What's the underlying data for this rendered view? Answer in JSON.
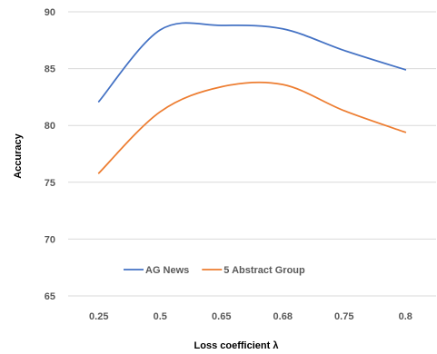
{
  "chart_data": {
    "type": "line",
    "categories": [
      "0.25",
      "0.5",
      "0.65",
      "0.68",
      "0.75",
      "0.8"
    ],
    "series": [
      {
        "name": "AG News",
        "color": "#4472C4",
        "values": [
          82.1,
          88.4,
          88.8,
          88.5,
          86.6,
          84.9
        ]
      },
      {
        "name": "5 Abstract Group",
        "color": "#ED7D31",
        "values": [
          75.8,
          81.2,
          83.4,
          83.6,
          81.3,
          79.4
        ]
      }
    ],
    "xlabel": "Loss coefficient λ",
    "ylabel": "Accuracy",
    "ylim": [
      65,
      90
    ],
    "yticks": [
      65,
      70,
      75,
      80,
      85,
      90
    ],
    "grid": "horizontal",
    "legend": "bottom-inside"
  }
}
